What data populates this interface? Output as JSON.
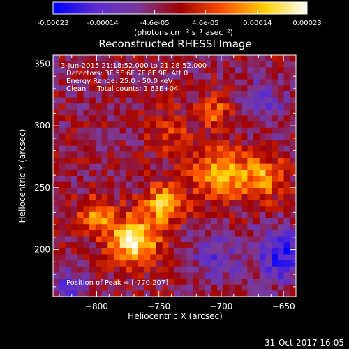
{
  "colorbar": {
    "tick_labels": [
      "-0.00023",
      "-0.00014",
      "-4.6e-05",
      "4.6e-05",
      "0.00014",
      "0.00023"
    ],
    "tick_values": [
      -0.00023,
      -0.00014,
      -4.6e-05,
      4.6e-05,
      0.00014,
      0.00023
    ],
    "range": [
      -0.00023,
      0.00023
    ],
    "units": "(photons cm⁻² s⁻¹ asec⁻²)",
    "colors": [
      "#0000ff",
      "#5a2bd0",
      "#7a3a9a",
      "#a00000",
      "#ff5000",
      "#ffd000",
      "#ffffff"
    ]
  },
  "chart_data": {
    "type": "heatmap",
    "title": "Reconstructed RHESSI Image",
    "xlabel": "Heliocentric X (arcsec)",
    "ylabel": "Heliocentric Y (arcsec)",
    "xlim": [
      -835,
      -640
    ],
    "ylim": [
      162,
      357
    ],
    "x_ticks": [
      -800,
      -750,
      -700,
      -650
    ],
    "x_tick_labels": [
      "−800",
      "−750",
      "−700",
      "−650"
    ],
    "y_ticks": [
      200,
      250,
      300,
      350
    ],
    "y_tick_labels": [
      "200",
      "250",
      "300",
      "350"
    ],
    "grid": false,
    "annotations": [
      "3-Jun-2015 21:18:52.000 to 21:28:52.000",
      "Detectors: 3F 5F 6F 7F 8F 9F, Att 0",
      "Energy Range: 25.0 - 50.0 keV",
      "Clean     Total counts: 1.63E+04"
    ],
    "peak_label": "Position of Peak = [-770,207]",
    "peak_position": [
      -770,
      207
    ],
    "sources": [
      {
        "x": -770,
        "y": 207,
        "peak": 0.00023,
        "sigma": 14
      },
      {
        "x": -745,
        "y": 238,
        "peak": 0.00018,
        "sigma": 11
      },
      {
        "x": -800,
        "y": 228,
        "peak": 0.00015,
        "sigma": 10
      },
      {
        "x": -700,
        "y": 262,
        "peak": 0.00016,
        "sigma": 16
      },
      {
        "x": -665,
        "y": 258,
        "peak": 0.00014,
        "sigma": 12
      },
      {
        "x": -705,
        "y": 312,
        "peak": 0.00011,
        "sigma": 9
      },
      {
        "x": -740,
        "y": 295,
        "peak": 8e-05,
        "sigma": 12
      },
      {
        "x": -650,
        "y": 195,
        "peak": -0.00016,
        "sigma": 15
      },
      {
        "x": -705,
        "y": 195,
        "peak": -0.0001,
        "sigma": 14
      },
      {
        "x": -665,
        "y": 320,
        "peak": -9e-05,
        "sigma": 13
      },
      {
        "x": -820,
        "y": 170,
        "peak": -0.00012,
        "sigma": 10
      }
    ]
  },
  "footer": {
    "timestamp": "31-Oct-2017 16:05"
  }
}
